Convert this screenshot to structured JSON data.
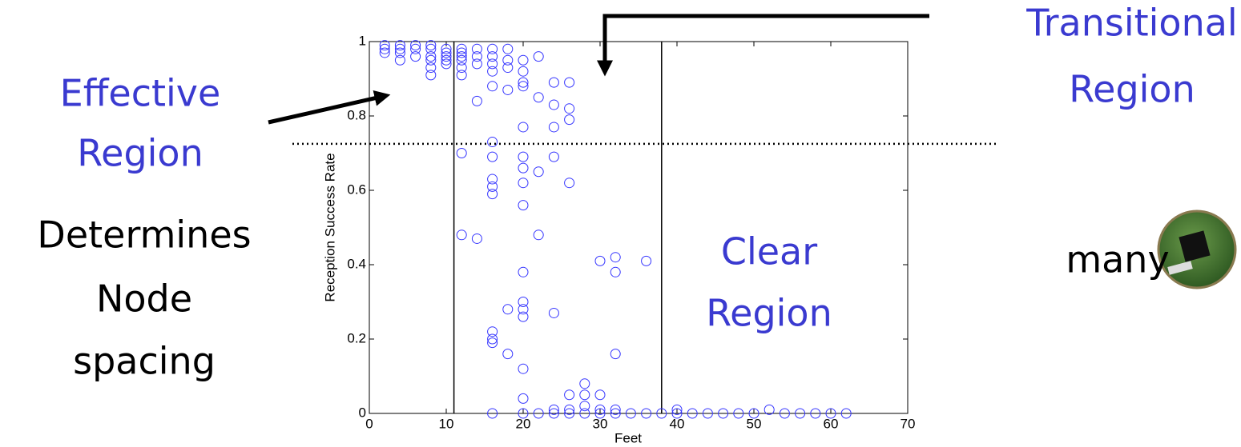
{
  "chart_data": {
    "type": "scatter",
    "xlabel": "Feet",
    "ylabel": "Reception Success Rate",
    "color": "#3535ff",
    "xlim": [
      0,
      70
    ],
    "ylim": [
      0,
      1
    ],
    "xticks": [
      0,
      10,
      20,
      30,
      40,
      50,
      60,
      70
    ],
    "yticks": [
      0,
      0.2,
      0.4,
      0.6,
      0.8,
      1
    ],
    "region_bounds": [
      11,
      38
    ],
    "threshold": 0.725,
    "x": [
      2,
      2,
      2,
      4,
      4,
      4,
      4,
      6,
      6,
      6,
      8,
      8,
      8,
      8,
      8,
      8,
      10,
      10,
      10,
      10,
      10,
      12,
      12,
      12,
      12,
      12,
      12,
      12,
      12,
      14,
      14,
      14,
      14,
      14,
      16,
      16,
      16,
      16,
      16,
      16,
      16,
      16,
      16,
      16,
      16,
      16,
      16,
      16,
      18,
      18,
      18,
      18,
      18,
      18,
      20,
      20,
      20,
      20,
      20,
      20,
      20,
      20,
      20,
      20,
      20,
      20,
      20,
      20,
      20,
      20,
      22,
      22,
      22,
      22,
      22,
      24,
      24,
      24,
      24,
      24,
      24,
      24,
      26,
      26,
      26,
      26,
      26,
      26,
      26,
      28,
      28,
      28,
      28,
      30,
      30,
      30,
      30,
      32,
      32,
      32,
      32,
      32,
      34,
      36,
      36,
      38,
      40,
      40,
      42,
      44,
      46,
      48,
      50,
      52,
      54,
      56,
      58,
      60,
      62
    ],
    "values": [
      0.99,
      0.98,
      0.97,
      0.99,
      0.98,
      0.97,
      0.95,
      0.99,
      0.98,
      0.96,
      0.99,
      0.98,
      0.96,
      0.95,
      0.93,
      0.91,
      0.98,
      0.97,
      0.96,
      0.95,
      0.94,
      0.98,
      0.97,
      0.96,
      0.95,
      0.93,
      0.91,
      0.7,
      0.48,
      0.98,
      0.96,
      0.94,
      0.84,
      0.47,
      0.98,
      0.96,
      0.94,
      0.92,
      0.88,
      0.73,
      0.69,
      0.63,
      0.61,
      0.59,
      0.22,
      0.2,
      0.19,
      0,
      0.98,
      0.95,
      0.93,
      0.87,
      0.28,
      0.16,
      0.95,
      0.92,
      0.89,
      0.88,
      0.77,
      0.69,
      0.66,
      0.62,
      0.56,
      0.38,
      0.3,
      0.28,
      0.26,
      0.12,
      0.04,
      0,
      0.96,
      0.85,
      0.65,
      0.48,
      0,
      0.89,
      0.83,
      0.77,
      0.69,
      0.27,
      0.01,
      0,
      0.89,
      0.82,
      0.79,
      0.62,
      0.05,
      0.01,
      0,
      0.08,
      0.05,
      0.02,
      0,
      0.41,
      0.05,
      0.01,
      0,
      0.42,
      0.38,
      0.16,
      0.01,
      0,
      0,
      0.41,
      0,
      0,
      0.01,
      0,
      0,
      0,
      0,
      0,
      0,
      0.01,
      0,
      0,
      0,
      0,
      0
    ],
    "annotations": {
      "effective": [
        "Effective",
        "Region"
      ],
      "transitional": [
        "Transitional",
        "Region"
      ],
      "clear": [
        "Clear",
        "Region"
      ],
      "determines": [
        "Determines",
        "Node",
        "spacing"
      ],
      "many": "many"
    }
  }
}
